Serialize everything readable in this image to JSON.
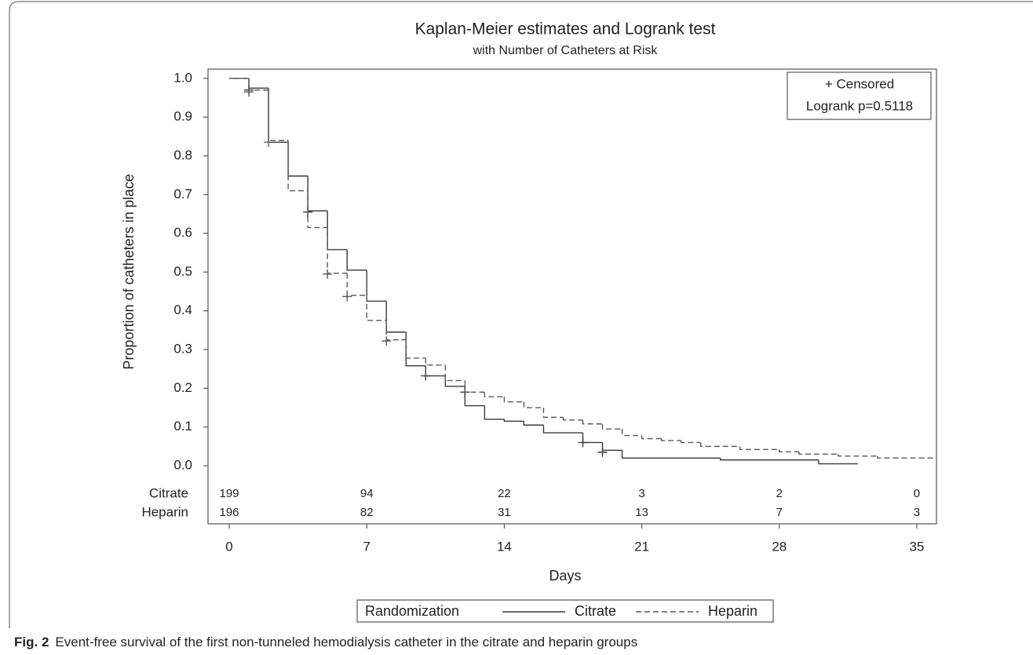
{
  "chart_data": {
    "type": "km",
    "title": "Kaplan-Meier estimates and Logrank test",
    "subtitle": "with Number of Catheters at Risk",
    "x_label": "Days",
    "y_label": "Proportion of catheters in place",
    "xlim": [
      -1.08,
      36
    ],
    "xticks": [
      0,
      7,
      14,
      21,
      28,
      35
    ],
    "ylim": [
      -0.15,
      1.024
    ],
    "yticks": [
      {
        "value": 0,
        "label": "0.0"
      },
      0.1,
      0.2,
      0.3,
      0.4,
      0.5,
      0.6,
      0.7,
      0.8,
      0.9,
      {
        "value": 1,
        "label": "1.0"
      }
    ],
    "series": [
      {
        "name": "Citrate",
        "color": "#3a3a3a",
        "line_style": "solid",
        "x": [
          0,
          1,
          2,
          3,
          4,
          5,
          6,
          7,
          8,
          9,
          10,
          11,
          12,
          13,
          14,
          15,
          16,
          18,
          19,
          20,
          25,
          30,
          32
        ],
        "values": [
          1,
          0.975,
          0.835,
          0.748,
          0.658,
          0.558,
          0.505,
          0.425,
          0.345,
          0.258,
          0.232,
          0.205,
          0.155,
          0.12,
          0.115,
          0.105,
          0.085,
          0.06,
          0.04,
          0.02,
          0.015,
          0.005,
          0.005
        ],
        "censored_x": [
          1,
          4,
          10,
          12,
          18,
          19
        ],
        "censored_values": [
          0.97,
          0.655,
          0.232,
          0.19,
          0.06,
          0.035
        ]
      },
      {
        "name": "Heparin",
        "color": "#5a5a5a",
        "line_style": "dashed",
        "x": [
          0,
          1,
          2,
          3,
          4,
          5,
          6,
          7,
          8,
          9,
          10,
          11,
          12,
          13,
          14,
          15,
          16,
          17,
          18,
          19,
          20,
          21,
          22,
          23,
          24,
          26,
          28,
          29,
          31,
          33,
          36
        ],
        "values": [
          1,
          0.97,
          0.84,
          0.71,
          0.615,
          0.497,
          0.44,
          0.375,
          0.325,
          0.278,
          0.26,
          0.22,
          0.19,
          0.178,
          0.165,
          0.15,
          0.125,
          0.118,
          0.108,
          0.095,
          0.078,
          0.07,
          0.065,
          0.06,
          0.05,
          0.042,
          0.036,
          0.03,
          0.025,
          0.02,
          0.02
        ],
        "censored_x": [
          1,
          2,
          5,
          6,
          8
        ],
        "censored_values": [
          0.965,
          0.835,
          0.495,
          0.437,
          0.322
        ]
      }
    ],
    "at_risk": {
      "x": [
        0,
        7,
        14,
        21,
        28,
        35
      ],
      "rows": [
        {
          "name": "Citrate",
          "values": [
            199,
            94,
            22,
            3,
            2,
            0
          ]
        },
        {
          "name": "Heparin",
          "values": [
            196,
            82,
            31,
            13,
            7,
            3
          ]
        }
      ]
    },
    "inset": {
      "censor_label": "+ Censored",
      "test_label": "Logrank p=0.5118"
    },
    "legend_title": "Randomization",
    "caption": {
      "label": "Fig. 2",
      "text": "Event-free survival of the first non-tunneled hemodialysis catheter in the citrate and heparin groups"
    }
  }
}
